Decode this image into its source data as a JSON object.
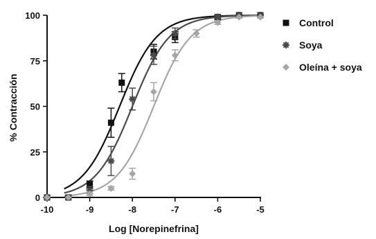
{
  "chart_data": {
    "type": "scatter",
    "xlabel": "Log [Norepinefrina]",
    "ylabel": "% Contracción",
    "xlim": [
      -10,
      -5
    ],
    "ylim": [
      0,
      100
    ],
    "xticks": [
      -10,
      -9,
      -8,
      -7,
      -6,
      -5
    ],
    "yticks": [
      0,
      25,
      50,
      75,
      100
    ],
    "xtick_labels": [
      "-10",
      "-9",
      "-8",
      "-7",
      "-6",
      "-5"
    ],
    "ytick_labels": [
      "0",
      "25",
      "50",
      "75",
      "100"
    ],
    "legend_position": "top-right",
    "grid": false,
    "series": [
      {
        "name": "Control",
        "marker": "square",
        "color": "#111111",
        "curve_ec50_log": -8.3,
        "curve_hill": 1.0,
        "points": [
          {
            "x": -10,
            "y": 0,
            "err": 0
          },
          {
            "x": -9.5,
            "y": 0,
            "err": 0
          },
          {
            "x": -9,
            "y": 7,
            "err": 2
          },
          {
            "x": -8.5,
            "y": 41,
            "err": 8
          },
          {
            "x": -8.25,
            "y": 63,
            "err": 5
          },
          {
            "x": -7.5,
            "y": 80,
            "err": 4
          },
          {
            "x": -7,
            "y": 88,
            "err": 3
          },
          {
            "x": -6,
            "y": 99,
            "err": 1
          },
          {
            "x": -5.5,
            "y": 100,
            "err": 0
          },
          {
            "x": -5,
            "y": 100,
            "err": 0
          }
        ]
      },
      {
        "name": "Soya",
        "marker": "star",
        "color": "#4a4a4a",
        "curve_ec50_log": -8.0,
        "curve_hill": 1.0,
        "points": [
          {
            "x": -10,
            "y": 0,
            "err": 0
          },
          {
            "x": -9.5,
            "y": 0,
            "err": 0
          },
          {
            "x": -9,
            "y": 4,
            "err": 2
          },
          {
            "x": -8.5,
            "y": 20,
            "err": 8
          },
          {
            "x": -8,
            "y": 54,
            "err": 6
          },
          {
            "x": -7.5,
            "y": 78,
            "err": 5
          },
          {
            "x": -7,
            "y": 90,
            "err": 3
          },
          {
            "x": -6,
            "y": 99,
            "err": 1
          },
          {
            "x": -5.5,
            "y": 100,
            "err": 0
          },
          {
            "x": -5,
            "y": 100,
            "err": 0
          }
        ]
      },
      {
        "name": "Oleína + soya",
        "marker": "diamond",
        "color": "#a6a6a6",
        "curve_ec50_log": -7.5,
        "curve_hill": 1.0,
        "points": [
          {
            "x": -10,
            "y": 0,
            "err": 0
          },
          {
            "x": -9.5,
            "y": 0,
            "err": 0
          },
          {
            "x": -9,
            "y": 2,
            "err": 1
          },
          {
            "x": -8.5,
            "y": 5,
            "err": 1
          },
          {
            "x": -8,
            "y": 13,
            "err": 3
          },
          {
            "x": -7.5,
            "y": 58,
            "err": 5
          },
          {
            "x": -7,
            "y": 78,
            "err": 3
          },
          {
            "x": -6.5,
            "y": 90,
            "err": 2
          },
          {
            "x": -6,
            "y": 96,
            "err": 1
          },
          {
            "x": -5.5,
            "y": 99,
            "err": 0
          },
          {
            "x": -5,
            "y": 99,
            "err": 0
          }
        ]
      }
    ]
  }
}
